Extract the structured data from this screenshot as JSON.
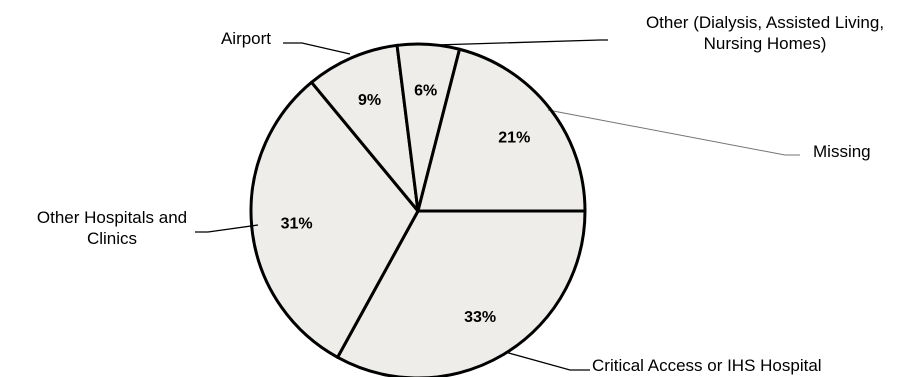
{
  "chart_data": {
    "type": "pie",
    "title": "",
    "start_angle_deg": 0,
    "direction": "clockwise",
    "slice_fill": "#efede9",
    "slice_stroke": "#000000",
    "leader_color": "#000000",
    "slices": [
      {
        "label": "Critical Access or IHS Hospital",
        "value": 33,
        "value_label": "33%",
        "label_lines": [
          "Critical Access or IHS Hospital"
        ]
      },
      {
        "label": "Other Hospitals and Clinics",
        "value": 31,
        "value_label": "31%",
        "label_lines": [
          "Other Hospitals and",
          "Clinics"
        ]
      },
      {
        "label": "Airport",
        "value": 9,
        "value_label": "9%",
        "label_lines": [
          "Airport"
        ]
      },
      {
        "label": "Other (Dialysis, Assisted Living, Nursing Homes)",
        "value": 6,
        "value_label": "6%",
        "label_lines": [
          "Other (Dialysis, Assisted Living,",
          "Nursing Homes)"
        ]
      },
      {
        "label": "Missing",
        "value": 21,
        "value_label": "21%",
        "label_lines": [
          "Missing"
        ]
      }
    ]
  }
}
